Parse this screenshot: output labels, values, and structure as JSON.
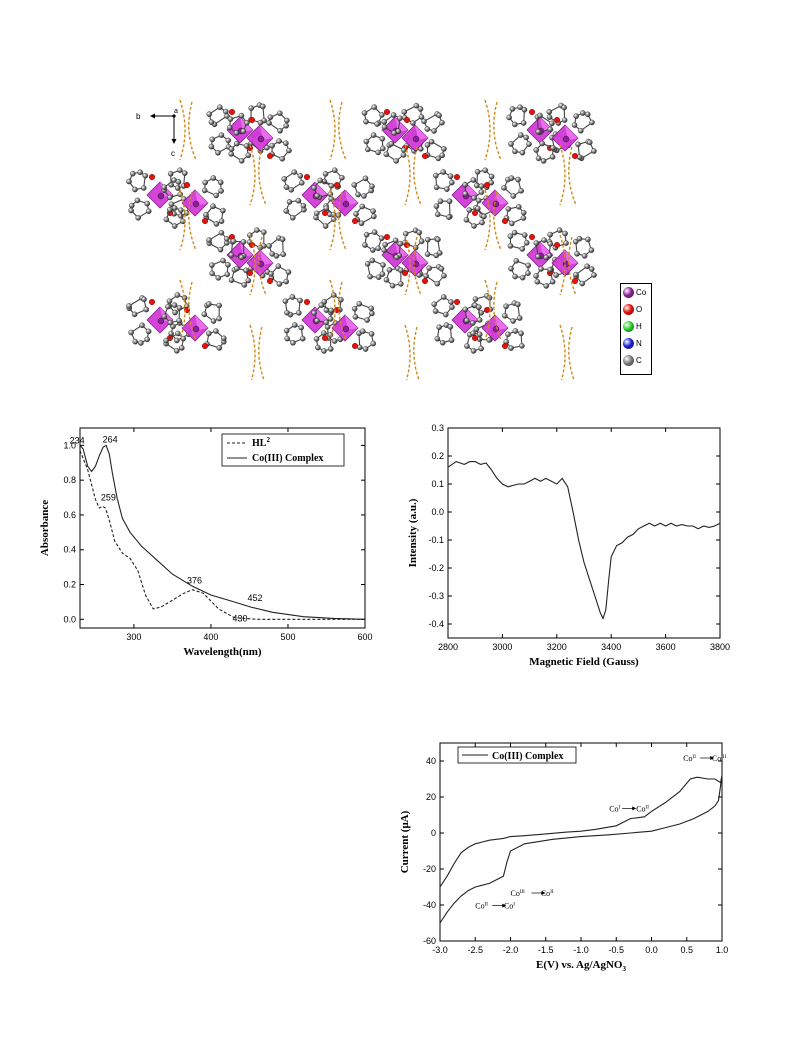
{
  "crystal": {
    "axis_labels": {
      "b": "b",
      "a": "a",
      "c": "c"
    },
    "legend": [
      {
        "label": "Co",
        "color": "#8e1f9a"
      },
      {
        "label": "O",
        "color": "#e3120b"
      },
      {
        "label": "H",
        "color": "#27d427"
      },
      {
        "label": "N",
        "color": "#1a22d4"
      },
      {
        "label": "C",
        "color": "#7d7d7d"
      }
    ],
    "polyhedron_color": "#d23ad8",
    "hbond_color": "#d08a1a"
  },
  "chart_data": [
    {
      "type": "line",
      "xlabel": "Wavelength(nm)",
      "ylabel": "Absorbance",
      "xlim": [
        230,
        600
      ],
      "ylim": [
        -0.05,
        1.1
      ],
      "xticks": [
        300,
        400,
        500,
        600
      ],
      "yticks": [
        0.0,
        0.2,
        0.4,
        0.6,
        0.8,
        1.0
      ],
      "legend_position": "top-right",
      "grid": false,
      "series": [
        {
          "name": "HL",
          "name_sup": "2",
          "style": "dashed",
          "x": [
            230,
            240,
            250,
            255,
            259,
            263,
            268,
            275,
            285,
            295,
            305,
            315,
            325,
            335,
            350,
            365,
            376,
            390,
            410,
            430,
            460,
            500,
            550,
            600
          ],
          "y": [
            0.97,
            0.86,
            0.69,
            0.64,
            0.65,
            0.64,
            0.57,
            0.45,
            0.38,
            0.35,
            0.28,
            0.14,
            0.06,
            0.07,
            0.11,
            0.15,
            0.17,
            0.15,
            0.06,
            0.01,
            0.0,
            0.0,
            0.0,
            0.0
          ]
        },
        {
          "name": "Co(III) Complex",
          "style": "solid",
          "x": [
            230,
            234,
            240,
            245,
            250,
            255,
            260,
            264,
            268,
            272,
            278,
            285,
            295,
            310,
            330,
            350,
            376,
            400,
            430,
            452,
            480,
            520,
            560,
            600
          ],
          "y": [
            1.0,
            0.98,
            0.88,
            0.85,
            0.88,
            0.94,
            0.99,
            1.0,
            0.95,
            0.84,
            0.7,
            0.58,
            0.5,
            0.42,
            0.34,
            0.26,
            0.19,
            0.14,
            0.1,
            0.07,
            0.04,
            0.015,
            0.005,
            0.0
          ]
        }
      ],
      "annotations": [
        {
          "text": "234",
          "x": 234,
          "y": 1.0
        },
        {
          "text": "264",
          "x": 264,
          "y": 1.0
        },
        {
          "text": "259",
          "x": 259,
          "y": 0.65
        },
        {
          "text": "376",
          "x": 376,
          "y": 0.17
        },
        {
          "text": "452",
          "x": 452,
          "y": 0.07
        },
        {
          "text": "430",
          "x": 430,
          "y": 0.01
        }
      ]
    },
    {
      "type": "line",
      "xlabel": "Magnetic Field (Gauss)",
      "ylabel": "Intensity (a.u.)",
      "xlim": [
        2800,
        3800
      ],
      "ylim": [
        -0.45,
        0.3
      ],
      "xticks": [
        2800,
        3000,
        3200,
        3400,
        3600,
        3800
      ],
      "yticks": [
        -0.4,
        -0.3,
        -0.2,
        -0.1,
        0.0,
        0.1,
        0.2,
        0.3
      ],
      "grid": false,
      "series": [
        {
          "name": "",
          "style": "solid",
          "x": [
            2800,
            2830,
            2860,
            2880,
            2900,
            2920,
            2940,
            2960,
            2980,
            3000,
            3020,
            3040,
            3060,
            3080,
            3100,
            3120,
            3140,
            3160,
            3180,
            3200,
            3220,
            3240,
            3260,
            3280,
            3300,
            3320,
            3340,
            3360,
            3370,
            3380,
            3390,
            3400,
            3420,
            3440,
            3460,
            3480,
            3500,
            3520,
            3540,
            3560,
            3580,
            3600,
            3620,
            3640,
            3660,
            3680,
            3700,
            3720,
            3740,
            3760,
            3780,
            3800
          ],
          "y": [
            0.16,
            0.18,
            0.17,
            0.18,
            0.18,
            0.17,
            0.175,
            0.15,
            0.12,
            0.1,
            0.09,
            0.095,
            0.1,
            0.1,
            0.11,
            0.12,
            0.11,
            0.12,
            0.11,
            0.1,
            0.12,
            0.09,
            0.0,
            -0.1,
            -0.18,
            -0.24,
            -0.3,
            -0.36,
            -0.38,
            -0.35,
            -0.25,
            -0.16,
            -0.12,
            -0.11,
            -0.09,
            -0.08,
            -0.06,
            -0.05,
            -0.04,
            -0.05,
            -0.04,
            -0.05,
            -0.04,
            -0.05,
            -0.045,
            -0.05,
            -0.05,
            -0.06,
            -0.05,
            -0.055,
            -0.05,
            -0.04
          ]
        }
      ]
    },
    {
      "type": "line",
      "xlabel": "E(V) vs. Ag/AgNO",
      "xlabel_sub": "3",
      "ylabel": "Current (μA)",
      "xlim": [
        -3.0,
        1.0
      ],
      "ylim": [
        -60,
        50
      ],
      "xticks": [
        -3.0,
        -2.5,
        -2.0,
        -1.5,
        -1.0,
        -0.5,
        0.0,
        0.5,
        1.0
      ],
      "yticks": [
        -60,
        -40,
        -20,
        0,
        20,
        40
      ],
      "legend_position": "top-left",
      "grid": false,
      "series": [
        {
          "name": "Co(III) Complex",
          "style": "solid",
          "x": [
            -3.0,
            -2.9,
            -2.8,
            -2.7,
            -2.6,
            -2.5,
            -2.4,
            -2.3,
            -2.2,
            -2.1,
            -2.05,
            -2.0,
            -1.8,
            -1.5,
            -1.2,
            -1.0,
            -0.8,
            -0.5,
            -0.3,
            -0.1,
            0.0,
            0.2,
            0.4,
            0.55,
            0.65,
            0.8,
            0.9,
            0.98,
            1.0
          ],
          "y": [
            -30,
            -24,
            -17,
            -11,
            -8,
            -6,
            -5,
            -4,
            -3.5,
            -3,
            -2.5,
            -2,
            -1.5,
            -0.5,
            0.5,
            1,
            2,
            4,
            8,
            9,
            12,
            17,
            23,
            30,
            31,
            30,
            30,
            28,
            32
          ]
        },
        {
          "name": "",
          "style": "solid",
          "x": [
            1.0,
            0.95,
            0.9,
            0.8,
            0.6,
            0.4,
            0.2,
            0.0,
            -0.3,
            -0.6,
            -1.0,
            -1.4,
            -1.8,
            -2.0,
            -2.05,
            -2.1,
            -2.2,
            -2.3,
            -2.4,
            -2.5,
            -2.6,
            -2.7,
            -2.8,
            -2.9,
            -3.0
          ],
          "y": [
            32,
            18,
            15,
            12,
            8,
            5,
            3,
            1,
            0,
            -1,
            -2,
            -3.5,
            -6,
            -10,
            -16,
            -24,
            -26,
            -28,
            -29,
            -30,
            -32,
            -35,
            -39,
            -44,
            -50
          ]
        }
      ],
      "annotations": [
        {
          "text": "Co",
          "sup": "II",
          "arrow_to": "Co",
          "to_sup": "III",
          "x": 0.45,
          "y": 40
        },
        {
          "text": "Co",
          "sup": "I",
          "arrow_to": "Co",
          "to_sup": "II",
          "x": -0.6,
          "y": 12
        },
        {
          "text": "Co",
          "sup": "III",
          "arrow_to": "Co",
          "to_sup": "II",
          "x": -2.0,
          "y": -35
        },
        {
          "text": "Co",
          "sup": "II",
          "arrow_to": "Co",
          "to_sup": "I",
          "x": -2.5,
          "y": -42
        }
      ]
    }
  ]
}
